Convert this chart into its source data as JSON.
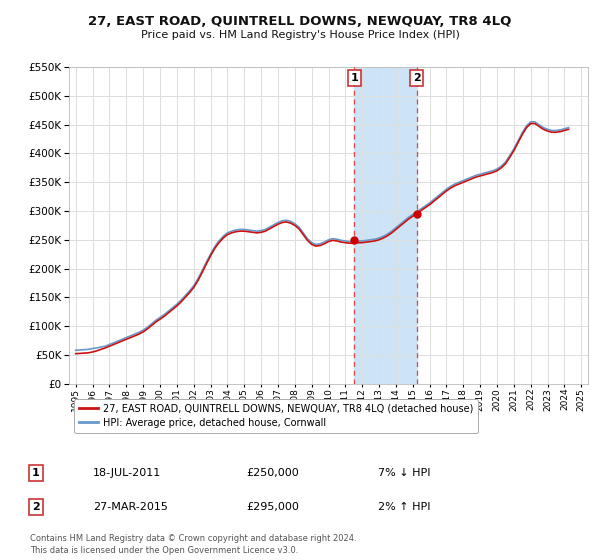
{
  "title": "27, EAST ROAD, QUINTRELL DOWNS, NEWQUAY, TR8 4LQ",
  "subtitle": "Price paid vs. HM Land Registry's House Price Index (HPI)",
  "ylim": [
    0,
    550000
  ],
  "yticks": [
    0,
    50000,
    100000,
    150000,
    200000,
    250000,
    300000,
    350000,
    400000,
    450000,
    500000,
    550000
  ],
  "xlim_start": 1994.6,
  "xlim_end": 2025.4,
  "background_color": "#ffffff",
  "grid_color": "#dddddd",
  "shade_color": "#cce4f5",
  "shade_x1": 2011.54,
  "shade_x2": 2015.24,
  "transaction1_x": 2011.54,
  "transaction1_y": 250000,
  "transaction2_x": 2015.24,
  "transaction2_y": 295000,
  "marker_color": "#cc0000",
  "dashed_line_color": "#dd4444",
  "legend_line1": "27, EAST ROAD, QUINTRELL DOWNS, NEWQUAY, TR8 4LQ (detached house)",
  "legend_line2": "HPI: Average price, detached house, Cornwall",
  "table_rows": [
    {
      "num": "1",
      "date": "18-JUL-2011",
      "price": "£250,000",
      "hpi": "7% ↓ HPI"
    },
    {
      "num": "2",
      "date": "27-MAR-2015",
      "price": "£295,000",
      "hpi": "2% ↑ HPI"
    }
  ],
  "footnote": "Contains HM Land Registry data © Crown copyright and database right 2024.\nThis data is licensed under the Open Government Licence v3.0.",
  "red_line_color": "#cc1111",
  "blue_line_color": "#6699cc",
  "hpi_years": [
    1995.0,
    1995.25,
    1995.5,
    1995.75,
    1996.0,
    1996.25,
    1996.5,
    1996.75,
    1997.0,
    1997.25,
    1997.5,
    1997.75,
    1998.0,
    1998.25,
    1998.5,
    1998.75,
    1999.0,
    1999.25,
    1999.5,
    1999.75,
    2000.0,
    2000.25,
    2000.5,
    2000.75,
    2001.0,
    2001.25,
    2001.5,
    2001.75,
    2002.0,
    2002.25,
    2002.5,
    2002.75,
    2003.0,
    2003.25,
    2003.5,
    2003.75,
    2004.0,
    2004.25,
    2004.5,
    2004.75,
    2005.0,
    2005.25,
    2005.5,
    2005.75,
    2006.0,
    2006.25,
    2006.5,
    2006.75,
    2007.0,
    2007.25,
    2007.5,
    2007.75,
    2008.0,
    2008.25,
    2008.5,
    2008.75,
    2009.0,
    2009.25,
    2009.5,
    2009.75,
    2010.0,
    2010.25,
    2010.5,
    2010.75,
    2011.0,
    2011.25,
    2011.5,
    2011.75,
    2012.0,
    2012.25,
    2012.5,
    2012.75,
    2013.0,
    2013.25,
    2013.5,
    2013.75,
    2014.0,
    2014.25,
    2014.5,
    2014.75,
    2015.0,
    2015.25,
    2015.5,
    2015.75,
    2016.0,
    2016.25,
    2016.5,
    2016.75,
    2017.0,
    2017.25,
    2017.5,
    2017.75,
    2018.0,
    2018.25,
    2018.5,
    2018.75,
    2019.0,
    2019.25,
    2019.5,
    2019.75,
    2020.0,
    2020.25,
    2020.5,
    2020.75,
    2021.0,
    2021.25,
    2021.5,
    2021.75,
    2022.0,
    2022.25,
    2022.5,
    2022.75,
    2023.0,
    2023.25,
    2023.5,
    2023.75,
    2024.0,
    2024.25
  ],
  "hpi_values": [
    58000,
    58500,
    59000,
    59500,
    61000,
    62000,
    63500,
    65000,
    68000,
    71000,
    74000,
    77000,
    80000,
    83000,
    86000,
    89000,
    93000,
    98000,
    104000,
    110000,
    115000,
    120000,
    126000,
    132000,
    138000,
    145000,
    153000,
    161000,
    170000,
    182000,
    196000,
    211000,
    225000,
    238000,
    248000,
    256000,
    262000,
    265000,
    267000,
    268000,
    268000,
    267000,
    266000,
    265000,
    266000,
    268000,
    272000,
    276000,
    280000,
    283000,
    284000,
    282000,
    278000,
    272000,
    262000,
    252000,
    245000,
    242000,
    243000,
    246000,
    250000,
    252000,
    251000,
    249000,
    248000,
    247000,
    247000,
    248000,
    248000,
    249000,
    250000,
    251000,
    253000,
    256000,
    260000,
    265000,
    271000,
    277000,
    283000,
    289000,
    294000,
    299000,
    304000,
    309000,
    314000,
    320000,
    326000,
    332000,
    338000,
    343000,
    347000,
    350000,
    353000,
    356000,
    359000,
    362000,
    364000,
    366000,
    368000,
    370000,
    373000,
    378000,
    385000,
    396000,
    408000,
    422000,
    436000,
    448000,
    455000,
    455000,
    450000,
    445000,
    442000,
    440000,
    440000,
    441000,
    443000,
    445000
  ],
  "red_years": [
    1995.0,
    1995.25,
    1995.5,
    1995.75,
    1996.0,
    1996.25,
    1996.5,
    1996.75,
    1997.0,
    1997.25,
    1997.5,
    1997.75,
    1998.0,
    1998.25,
    1998.5,
    1998.75,
    1999.0,
    1999.25,
    1999.5,
    1999.75,
    2000.0,
    2000.25,
    2000.5,
    2000.75,
    2001.0,
    2001.25,
    2001.5,
    2001.75,
    2002.0,
    2002.25,
    2002.5,
    2002.75,
    2003.0,
    2003.25,
    2003.5,
    2003.75,
    2004.0,
    2004.25,
    2004.5,
    2004.75,
    2005.0,
    2005.25,
    2005.5,
    2005.75,
    2006.0,
    2006.25,
    2006.5,
    2006.75,
    2007.0,
    2007.25,
    2007.5,
    2007.75,
    2008.0,
    2008.25,
    2008.5,
    2008.75,
    2009.0,
    2009.25,
    2009.5,
    2009.75,
    2010.0,
    2010.25,
    2010.5,
    2010.75,
    2011.0,
    2011.25,
    2011.5,
    2011.75,
    2012.0,
    2012.25,
    2012.5,
    2012.75,
    2013.0,
    2013.25,
    2013.5,
    2013.75,
    2014.0,
    2014.25,
    2014.5,
    2014.75,
    2015.0,
    2015.25,
    2015.5,
    2015.75,
    2016.0,
    2016.25,
    2016.5,
    2016.75,
    2017.0,
    2017.25,
    2017.5,
    2017.75,
    2018.0,
    2018.25,
    2018.5,
    2018.75,
    2019.0,
    2019.25,
    2019.5,
    2019.75,
    2020.0,
    2020.25,
    2020.5,
    2020.75,
    2021.0,
    2021.25,
    2021.5,
    2021.75,
    2022.0,
    2022.25,
    2022.5,
    2022.75,
    2023.0,
    2023.25,
    2023.5,
    2023.75,
    2024.0,
    2024.25
  ],
  "red_values": [
    52000,
    52500,
    53000,
    53500,
    55000,
    57000,
    59500,
    62000,
    65000,
    68000,
    71000,
    74000,
    77000,
    80000,
    83000,
    86000,
    90000,
    95000,
    101000,
    107000,
    112000,
    117000,
    123000,
    129000,
    135000,
    142000,
    150000,
    158000,
    167000,
    179000,
    193000,
    208000,
    222000,
    235000,
    245000,
    253000,
    259000,
    262000,
    264000,
    265000,
    265000,
    264000,
    263000,
    262000,
    263000,
    265000,
    269000,
    273000,
    277000,
    280000,
    281000,
    279000,
    275000,
    269000,
    259000,
    249000,
    242000,
    239000,
    240000,
    243000,
    247000,
    249000,
    248000,
    246000,
    245000,
    244000,
    244000,
    245000,
    245000,
    246000,
    247000,
    248000,
    250000,
    253000,
    257000,
    262000,
    268000,
    274000,
    280000,
    286000,
    291000,
    296000,
    301000,
    306000,
    311000,
    317000,
    323000,
    329000,
    335000,
    340000,
    344000,
    347000,
    350000,
    353000,
    356000,
    359000,
    361000,
    363000,
    365000,
    367000,
    370000,
    375000,
    382000,
    393000,
    405000,
    419000,
    433000,
    445000,
    452000,
    452000,
    447000,
    442000,
    439000,
    437000,
    437000,
    438000,
    440000,
    442000
  ]
}
